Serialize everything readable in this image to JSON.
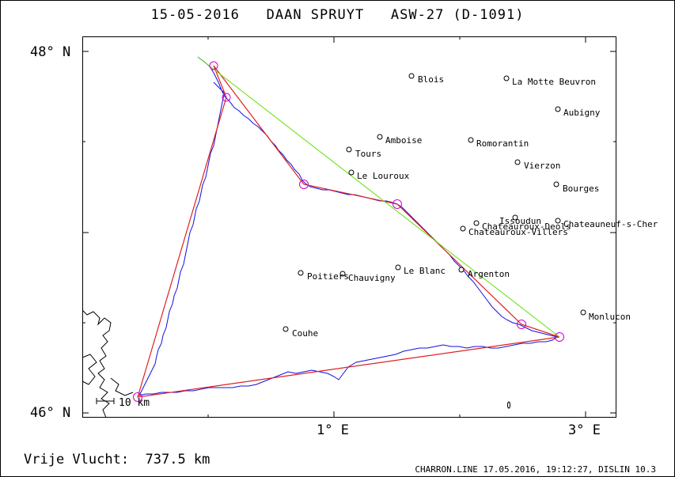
{
  "header": {
    "title": "15-05-2016   DAAN SPRUYT   ASW-27 (D-1091)"
  },
  "axes": {
    "lat_top": "48° N",
    "lat_bottom": "46° N",
    "lon_left": "1° E",
    "lon_right": "3° E"
  },
  "scale": {
    "label": "10 km"
  },
  "footer": {
    "distance": "Vrije Vlucht:  737.5 km",
    "info": "CHARRON.LINE 17.05.2016, 19:12:27, DISLIN 10.3"
  },
  "colors": {
    "track": "#1010e0",
    "route": "#e02020",
    "closing": "#60e000",
    "turnpoint": "#d000d0",
    "coast": "#000000"
  },
  "cities": [
    {
      "name": "Blois"
    },
    {
      "name": "La Motte Beuvron"
    },
    {
      "name": "Aubigny"
    },
    {
      "name": "Amboise"
    },
    {
      "name": "Romorantin"
    },
    {
      "name": "Tours"
    },
    {
      "name": "Vierzon"
    },
    {
      "name": "Le Louroux"
    },
    {
      "name": "Bourges"
    },
    {
      "name": "Issoudun"
    },
    {
      "name": "Chateauneuf-s-Cher"
    },
    {
      "name": "Chateauroux-Deols"
    },
    {
      "name": "Chateauroux-Villers"
    },
    {
      "name": "Le Blanc"
    },
    {
      "name": "Argenton"
    },
    {
      "name": "Poitiers"
    },
    {
      "name": "Chauvigny"
    },
    {
      "name": "Monlucon"
    },
    {
      "name": "Couhe"
    }
  ]
}
